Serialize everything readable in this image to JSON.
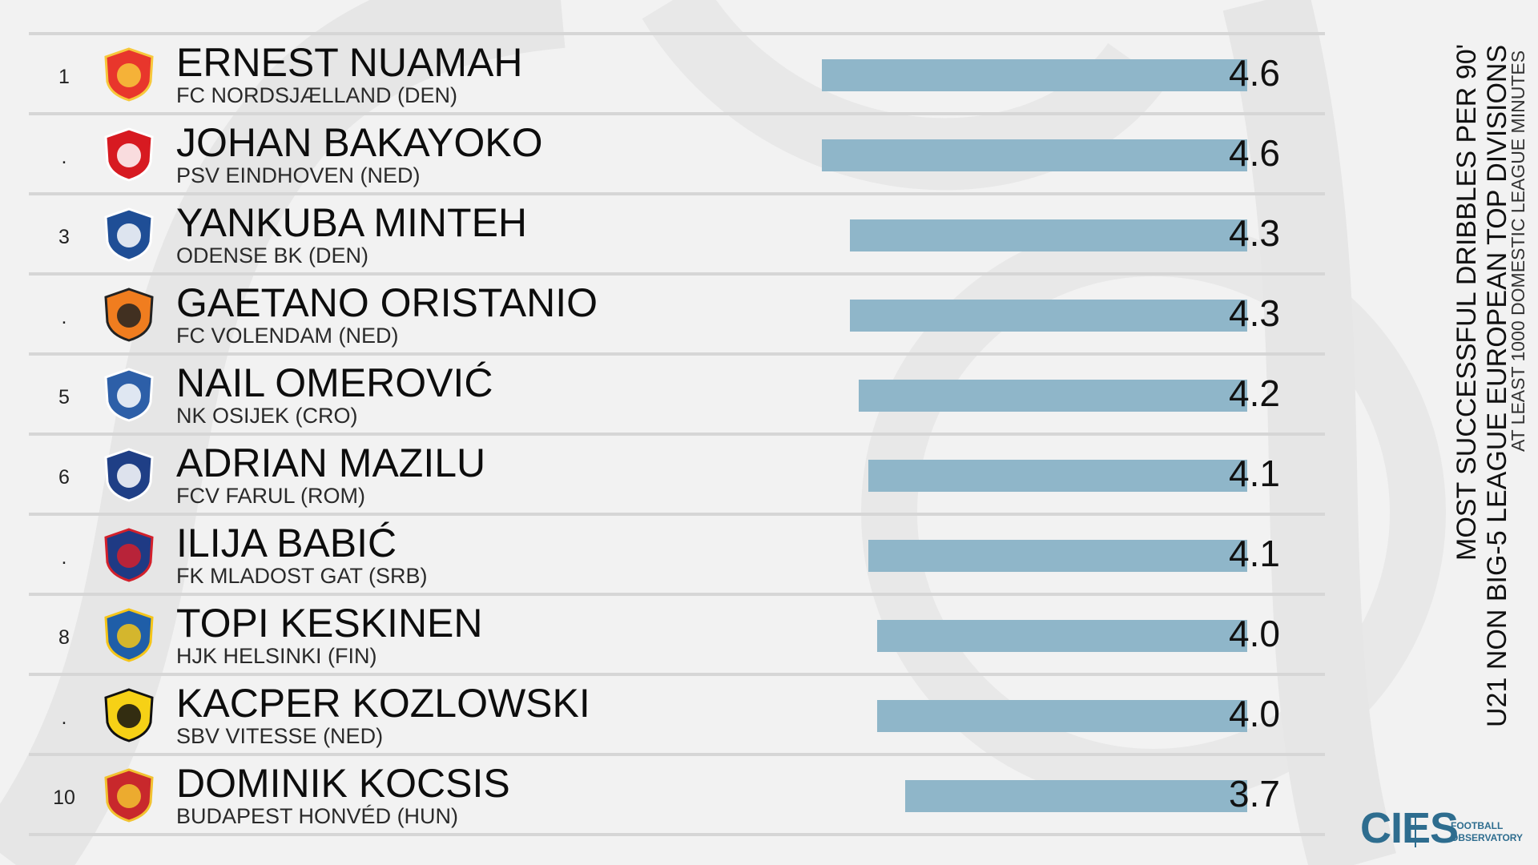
{
  "chart_data": {
    "type": "bar",
    "title_lines": [
      "MOST SUCCESSFUL DRIBBLES PER 90'",
      "U21 NON BIG-5 LEAGUE EUROPEAN TOP DIVISIONS",
      "AT LEAST 1000 DOMESTIC LEAGUE MINUTES"
    ],
    "rows": [
      {
        "rank": "1",
        "player": "ERNEST NUAMAH",
        "club": "FC NORDSJÆLLAND (DEN)",
        "value": 4.6,
        "value_label": "4.6",
        "logo": "FCN",
        "logo_icon": "fc-nordsjaelland-crest-icon",
        "colors": [
          "#e8362c",
          "#f7c83b"
        ]
      },
      {
        "rank": ".",
        "player": "JOHAN BAKAYOKO",
        "club": "PSV EINDHOVEN (NED)",
        "value": 4.6,
        "value_label": "4.6",
        "logo": "PSV",
        "logo_icon": "psv-crest-icon",
        "colors": [
          "#d71a21",
          "#ffffff"
        ]
      },
      {
        "rank": "3",
        "player": "YANKUBA MINTEH",
        "club": "ODENSE BK (DEN)",
        "value": 4.3,
        "value_label": "4.3",
        "logo": "OB",
        "logo_icon": "odense-crest-icon",
        "colors": [
          "#1f4e96",
          "#ffffff"
        ]
      },
      {
        "rank": ".",
        "player": "GAETANO ORISTANIO",
        "club": "FC VOLENDAM (NED)",
        "value": 4.3,
        "value_label": "4.3",
        "logo": "FC VOLENDAM",
        "logo_icon": "volendam-crest-icon",
        "colors": [
          "#f07d1f",
          "#222222"
        ]
      },
      {
        "rank": "5",
        "player": "NAIL OMEROVIĆ",
        "club": "NK OSIJEK (CRO)",
        "value": 4.2,
        "value_label": "4.2",
        "logo": "NK OSIJEK",
        "logo_icon": "osijek-crest-icon",
        "colors": [
          "#2d5fa8",
          "#ffffff"
        ]
      },
      {
        "rank": "6",
        "player": "ADRIAN MAZILU",
        "club": "FCV FARUL (ROM)",
        "value": 4.1,
        "value_label": "4.1",
        "logo": "FCF",
        "logo_icon": "farul-crest-icon",
        "colors": [
          "#1f3f86",
          "#ffffff"
        ]
      },
      {
        "rank": ".",
        "player": "ILIJA BABIĆ",
        "club": "FK MLADOST GAT (SRB)",
        "value": 4.1,
        "value_label": "4.1",
        "logo": "FK MLADOST GAT",
        "logo_icon": "mladost-gat-crest-icon",
        "colors": [
          "#1f3a84",
          "#d3202b"
        ]
      },
      {
        "rank": "8",
        "player": "TOPI KESKINEN",
        "club": "HJK HELSINKI (FIN)",
        "value": 4.0,
        "value_label": "4.0",
        "logo": "HJK",
        "logo_icon": "hjk-crest-icon",
        "colors": [
          "#1f5ea8",
          "#f5c518"
        ]
      },
      {
        "rank": ".",
        "player": "KACPER KOZLOWSKI",
        "club": "SBV VITESSE (NED)",
        "value": 4.0,
        "value_label": "4.0",
        "logo": "VITESSE",
        "logo_icon": "vitesse-crest-icon",
        "colors": [
          "#f6d116",
          "#111111"
        ]
      },
      {
        "rank": "10",
        "player": "DOMINIK KOCSIS",
        "club": "BUDAPEST HONVÉD (HUN)",
        "value": 3.7,
        "value_label": "3.7",
        "logo": "KISPEST HONVÉD",
        "logo_icon": "honved-crest-icon",
        "colors": [
          "#c8282c",
          "#f2c230"
        ]
      }
    ],
    "bar_color": "#8fb6c9",
    "xlim": [
      0,
      4.6
    ],
    "grid": false,
    "legend": "none"
  },
  "branding": {
    "logo_text": "CIES",
    "line1": "FOOTBALL",
    "line2": "OBSERVATORY",
    "color": "#2e6d8f"
  }
}
